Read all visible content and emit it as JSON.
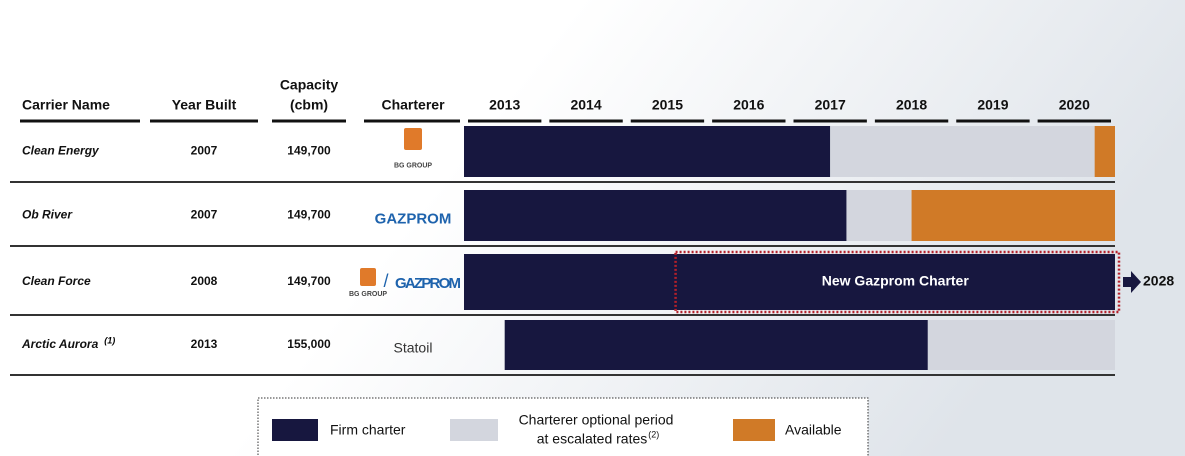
{
  "table": {
    "headers": {
      "carrier": "Carrier Name",
      "year_built": "Year Built",
      "capacity": [
        "Capacity",
        "(cbm)"
      ],
      "charterer": "Charterer"
    },
    "years": [
      2013,
      2014,
      2015,
      2016,
      2017,
      2018,
      2019,
      2020
    ],
    "xlim": [
      2013,
      2021
    ],
    "rows": [
      {
        "name": "Clean Energy",
        "year_built": "2007",
        "capacity": "149,700",
        "charterers": [
          "BG GROUP"
        ],
        "segments": [
          {
            "kind": "firm",
            "start": 2013,
            "end": 2017.5
          },
          {
            "kind": "optional",
            "start": 2017.5,
            "end": 2020.75
          },
          {
            "kind": "available",
            "start": 2020.75,
            "end": 2021
          }
        ]
      },
      {
        "name": "Ob River",
        "year_built": "2007",
        "capacity": "149,700",
        "charterers": [
          "GAZPROM"
        ],
        "segments": [
          {
            "kind": "firm",
            "start": 2013,
            "end": 2017.7
          },
          {
            "kind": "optional",
            "start": 2017.7,
            "end": 2018.5
          },
          {
            "kind": "available",
            "start": 2018.5,
            "end": 2021
          }
        ]
      },
      {
        "name": "Clean Force",
        "year_built": "2008",
        "capacity": "149,700",
        "charterers": [
          "BG GROUP",
          "GAZPROM"
        ],
        "separator": "/",
        "segments": [
          {
            "kind": "firm",
            "start": 2013,
            "end": 2021
          }
        ],
        "new_charter": {
          "label": "New Gazprom Charter",
          "start": 2015.6,
          "end": 2021,
          "extends_to": "2028"
        }
      },
      {
        "name": "Arctic Aurora",
        "note": "(1)",
        "year_built": "2013",
        "capacity": "155,000",
        "charterers": [
          "Statoil"
        ],
        "segments": [
          {
            "kind": "firm",
            "start": 2013.5,
            "end": 2018.7
          },
          {
            "kind": "optional",
            "start": 2018.7,
            "end": 2021
          }
        ]
      }
    ]
  },
  "legend": {
    "firm": "Firm charter",
    "optional": [
      "Charterer optional period",
      "at escalated rates"
    ],
    "optional_note": "(2)",
    "available": "Available"
  },
  "colors": {
    "firm": "#17173f",
    "optional": "#d3d6de",
    "available": "#d07a27"
  }
}
